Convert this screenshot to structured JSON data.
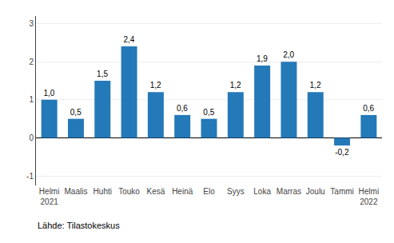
{
  "chart_data": {
    "type": "bar",
    "categories": [
      "Helmi\n2021",
      "Maalis",
      "Huhti",
      "Touko",
      "Kesä",
      "Heinä",
      "Elo",
      "Syys",
      "Loka",
      "Marras",
      "Joulu",
      "Tammi",
      "Helmi\n2022"
    ],
    "values": [
      1.0,
      0.5,
      1.5,
      2.4,
      1.2,
      0.6,
      0.5,
      1.2,
      1.9,
      2.0,
      1.2,
      -0.2,
      0.6
    ],
    "value_labels": [
      "1,0",
      "0,5",
      "1,5",
      "2,4",
      "1,2",
      "0,6",
      "0,5",
      "1,2",
      "1,9",
      "2,0",
      "1,2",
      "-0,2",
      "0,6"
    ],
    "data_labels": true,
    "color": "#2479b8",
    "ylim": [
      -1.25,
      3.2
    ],
    "yticks": [
      -1,
      0,
      1,
      2,
      3
    ],
    "grid": true,
    "annotations": [
      "Lähde: Tilastokeskus"
    ]
  }
}
